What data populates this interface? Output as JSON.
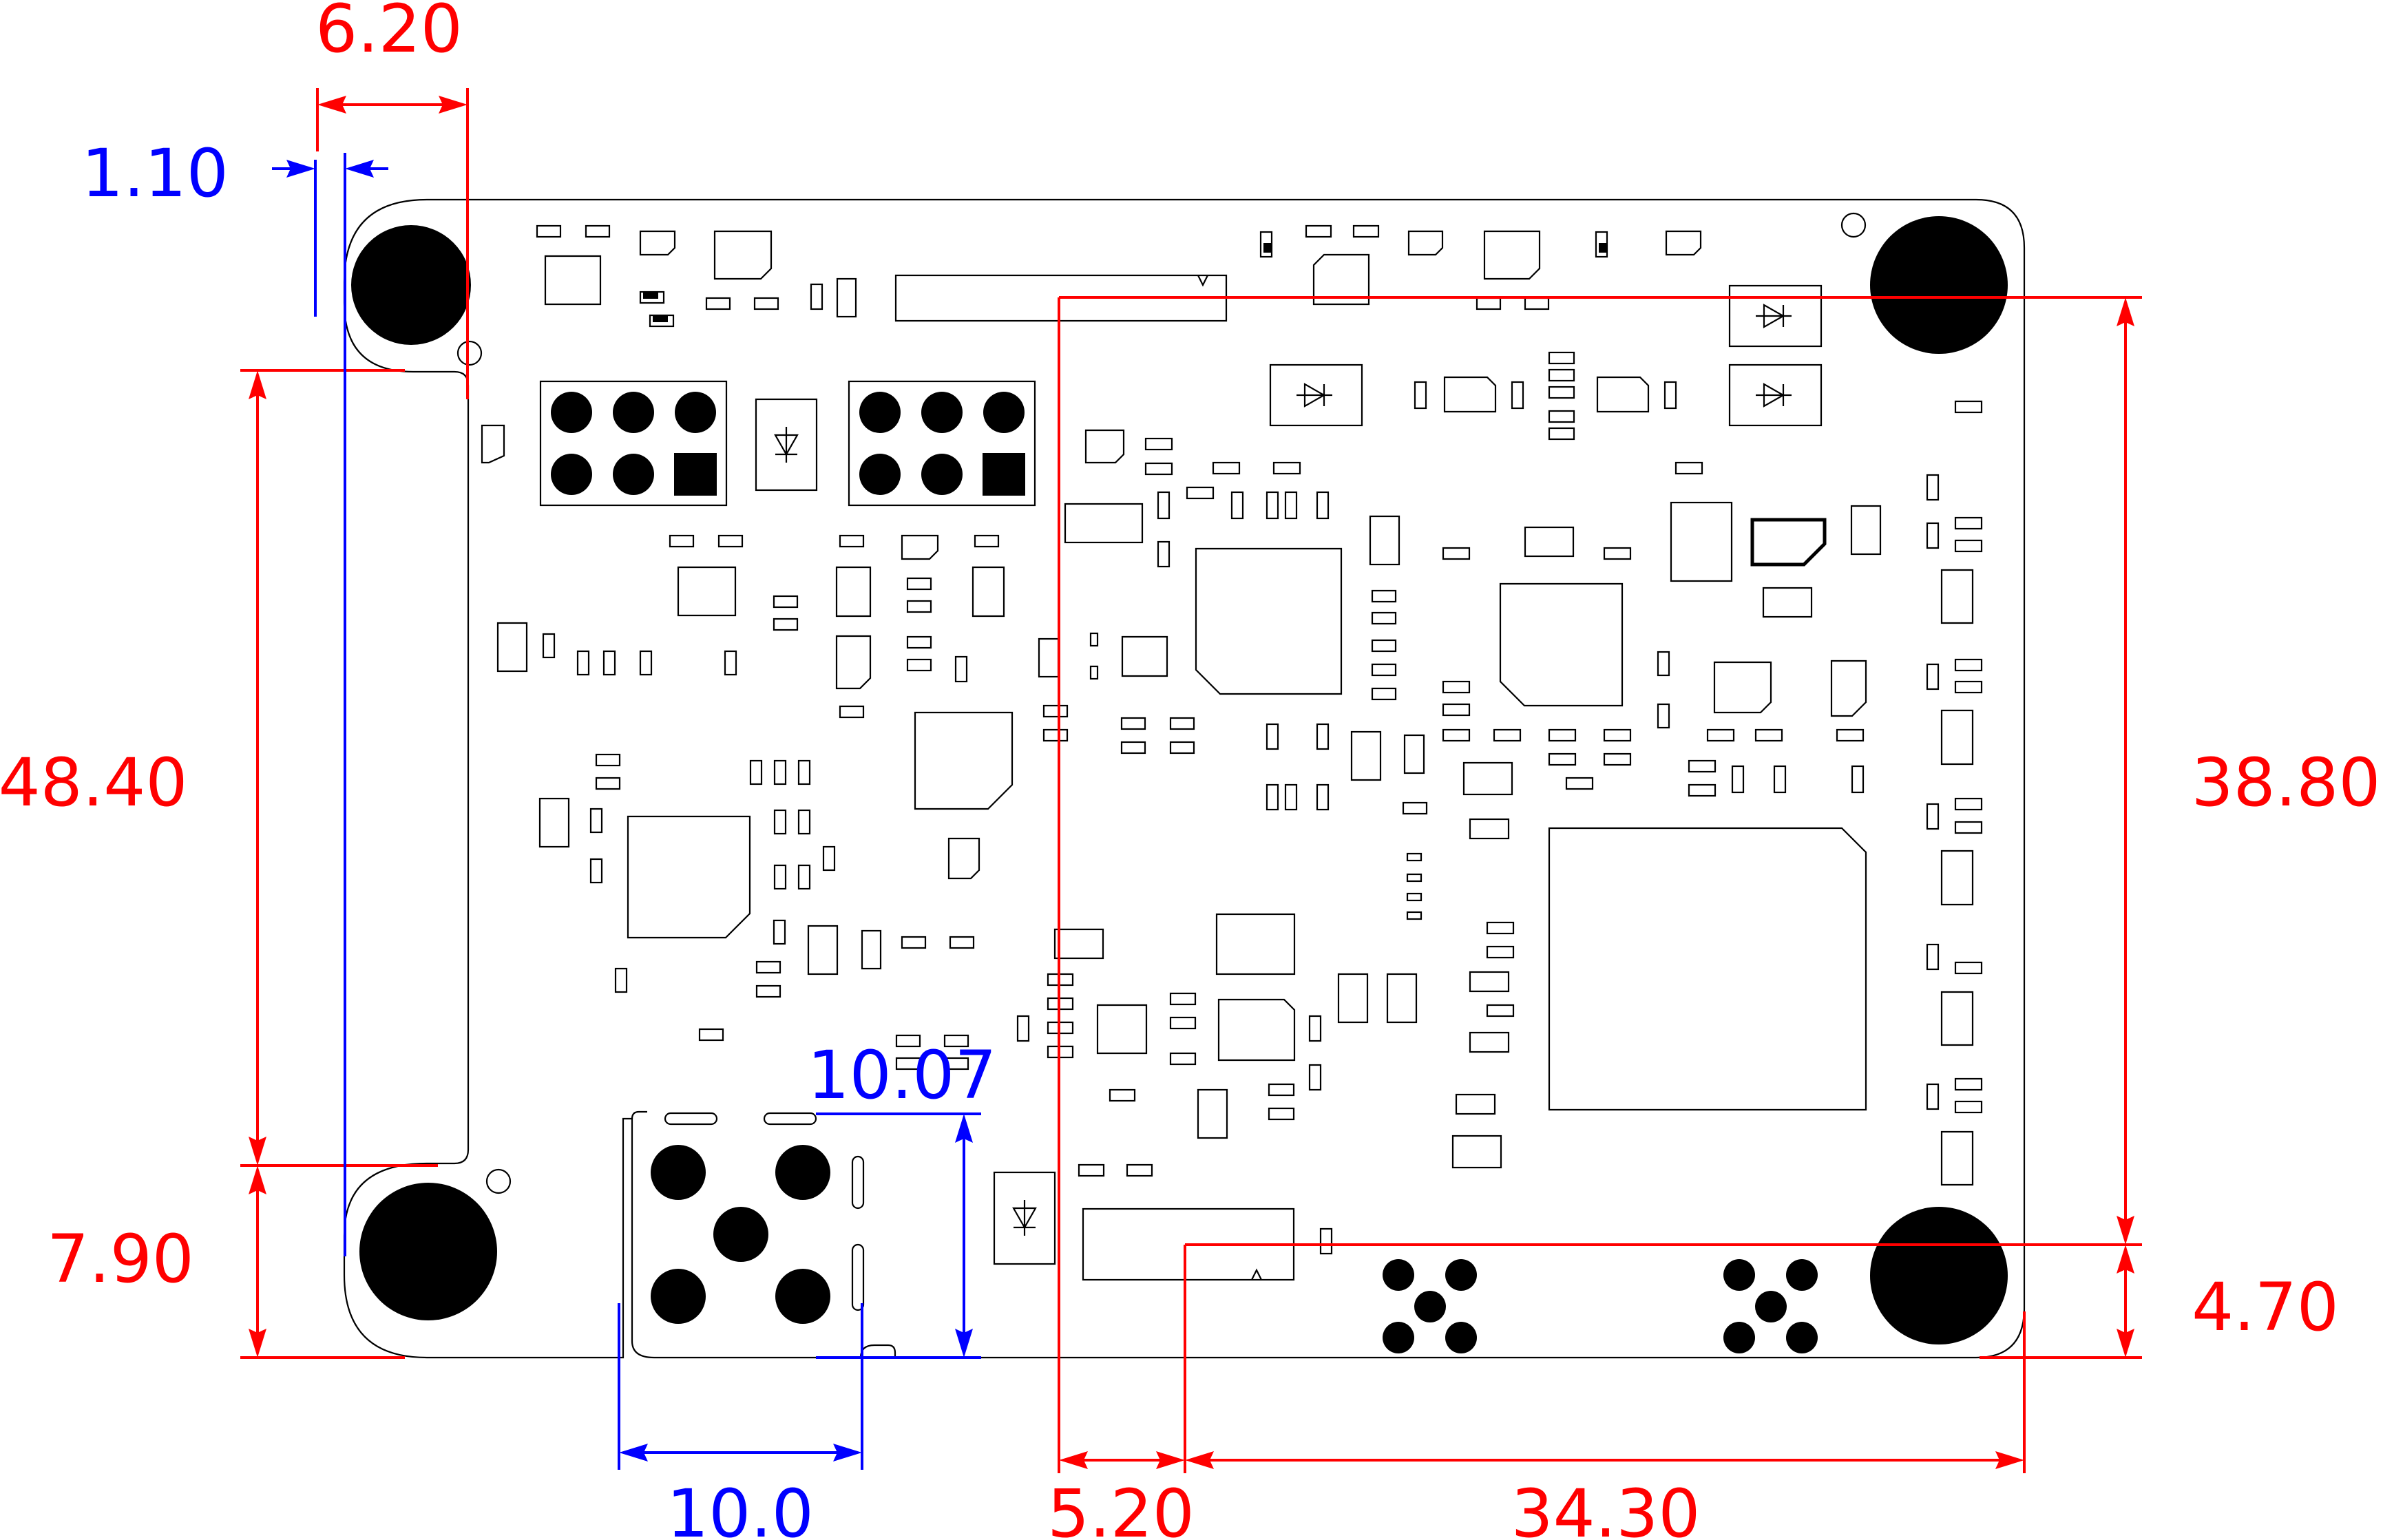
{
  "colors": {
    "dimension_red": "#ff0000",
    "dimension_blue": "#0000ff",
    "board_outline": "#000000"
  },
  "dimensions": {
    "top_width": "6.20",
    "hole_offset": "1.10",
    "left_height": "48.40",
    "left_bottom_height": "7.90",
    "connector_height": "10.07",
    "connector_width": "10.0",
    "bottom_offset": "5.20",
    "bottom_width": "34.30",
    "right_height": "38.80",
    "right_bottom_height": "4.70"
  },
  "icons": [
    "mounting-hole-icon",
    "diode-icon",
    "pin-header-icon",
    "chip-icon"
  ]
}
